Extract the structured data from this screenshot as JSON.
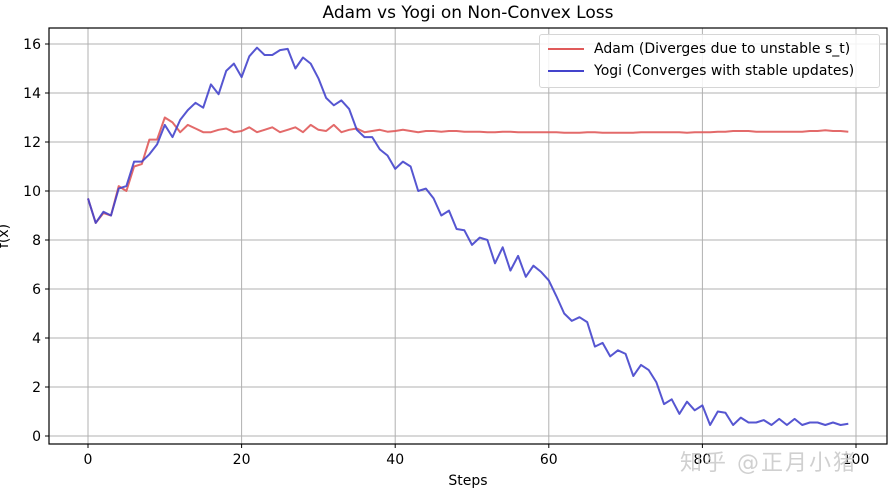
{
  "chart_data": {
    "type": "line",
    "title": "Adam vs Yogi on Non-Convex Loss",
    "xlabel": "Steps",
    "ylabel": "f(x)",
    "xlim": [
      -5,
      104
    ],
    "ylim": [
      -0.35,
      16.6
    ],
    "xticks": [
      0,
      20,
      40,
      60,
      80,
      100
    ],
    "yticks": [
      0,
      2,
      4,
      6,
      8,
      10,
      12,
      14,
      16
    ],
    "grid": true,
    "legend_position": "upper right",
    "x": [
      0,
      1,
      2,
      3,
      4,
      5,
      6,
      7,
      8,
      9,
      10,
      11,
      12,
      13,
      14,
      15,
      16,
      17,
      18,
      19,
      20,
      21,
      22,
      23,
      24,
      25,
      26,
      27,
      28,
      29,
      30,
      31,
      32,
      33,
      34,
      35,
      36,
      37,
      38,
      39,
      40,
      41,
      42,
      43,
      44,
      45,
      46,
      47,
      48,
      49,
      50,
      51,
      52,
      53,
      54,
      55,
      56,
      57,
      58,
      59,
      60,
      61,
      62,
      63,
      64,
      65,
      66,
      67,
      68,
      69,
      70,
      71,
      72,
      73,
      74,
      75,
      76,
      77,
      78,
      79,
      80,
      81,
      82,
      83,
      84,
      85,
      86,
      87,
      88,
      89,
      90,
      91,
      92,
      93,
      94,
      95,
      96,
      97,
      98,
      99
    ],
    "series": [
      {
        "name": "Adam (Diverges due to unstable s_t)",
        "color": "#e05a5a",
        "values": [
          9.7,
          8.7,
          9.1,
          9.0,
          10.2,
          10.0,
          11.0,
          11.1,
          12.1,
          12.1,
          13.0,
          12.8,
          12.4,
          12.7,
          12.55,
          12.4,
          12.4,
          12.5,
          12.55,
          12.4,
          12.45,
          12.6,
          12.4,
          12.5,
          12.6,
          12.4,
          12.5,
          12.6,
          12.4,
          12.7,
          12.5,
          12.45,
          12.7,
          12.4,
          12.5,
          12.55,
          12.4,
          12.45,
          12.5,
          12.42,
          12.45,
          12.5,
          12.45,
          12.4,
          12.45,
          12.45,
          12.42,
          12.45,
          12.45,
          12.42,
          12.42,
          12.42,
          12.4,
          12.4,
          12.42,
          12.42,
          12.4,
          12.4,
          12.4,
          12.4,
          12.4,
          12.4,
          12.38,
          12.38,
          12.38,
          12.4,
          12.4,
          12.38,
          12.38,
          12.38,
          12.38,
          12.38,
          12.4,
          12.4,
          12.4,
          12.4,
          12.4,
          12.4,
          12.38,
          12.4,
          12.4,
          12.4,
          12.42,
          12.42,
          12.45,
          12.45,
          12.45,
          12.42,
          12.42,
          12.42,
          12.42,
          12.42,
          12.42,
          12.42,
          12.45,
          12.45,
          12.48,
          12.45,
          12.45,
          12.42
        ]
      },
      {
        "name": "Yogi (Converges with stable updates)",
        "color": "#4444cc",
        "values": [
          9.7,
          8.7,
          9.15,
          9.0,
          10.1,
          10.2,
          11.2,
          11.2,
          11.5,
          11.9,
          12.7,
          12.2,
          12.9,
          13.3,
          13.6,
          13.4,
          14.35,
          13.95,
          14.9,
          15.2,
          14.65,
          15.5,
          15.85,
          15.55,
          15.55,
          15.75,
          15.8,
          15.0,
          15.45,
          15.2,
          14.6,
          13.8,
          13.5,
          13.7,
          13.35,
          12.5,
          12.2,
          12.2,
          11.7,
          11.45,
          10.9,
          11.2,
          11.0,
          10.0,
          10.1,
          9.7,
          9.0,
          9.2,
          8.45,
          8.4,
          7.8,
          8.1,
          8.0,
          7.05,
          7.7,
          6.75,
          7.35,
          6.5,
          6.95,
          6.7,
          6.35,
          5.7,
          5.0,
          4.7,
          4.85,
          4.65,
          3.65,
          3.8,
          3.25,
          3.5,
          3.35,
          2.45,
          2.9,
          2.7,
          2.2,
          1.3,
          1.5,
          0.9,
          1.4,
          1.05,
          1.25,
          0.45,
          1.0,
          0.95,
          0.45,
          0.75,
          0.55,
          0.55,
          0.65,
          0.45,
          0.7,
          0.45,
          0.7,
          0.45,
          0.55,
          0.55,
          0.45,
          0.55,
          0.45,
          0.5
        ]
      }
    ]
  },
  "watermark": "知乎 @正月小猪"
}
